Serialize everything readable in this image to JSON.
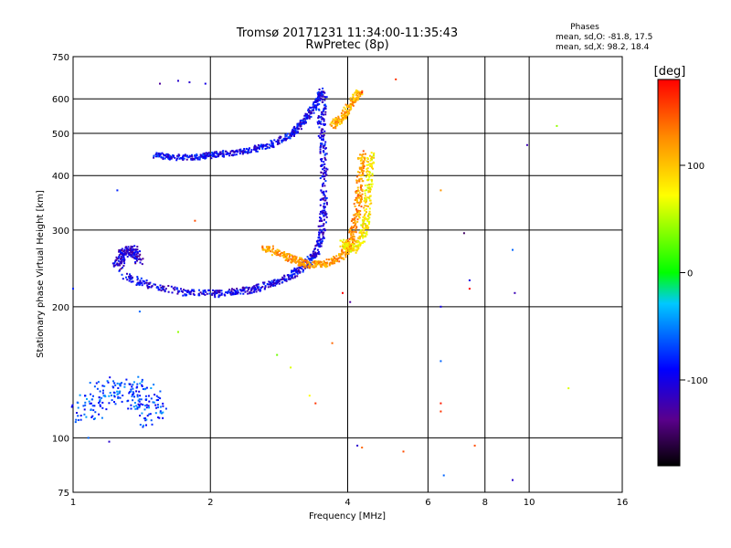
{
  "chart_data": {
    "type": "scatter",
    "title": "Tromsø 20171231 11:34:00-11:35:43",
    "subtitle": "RwPretec (8p)",
    "xlabel": "Frequency [MHz]",
    "ylabel": "Stationary phase Virtual Height [km]",
    "x_scale": "log",
    "y_scale": "log",
    "xlim": [
      1,
      16
    ],
    "ylim": [
      75,
      750
    ],
    "x_ticks": [
      "1",
      "2",
      "4",
      "6",
      "8",
      "10",
      "16"
    ],
    "x_tick_values": [
      1,
      2,
      4,
      6,
      8,
      10,
      16
    ],
    "y_ticks": [
      "75",
      "100",
      "200",
      "300",
      "400",
      "500",
      "600",
      "750"
    ],
    "y_tick_values": [
      75,
      100,
      200,
      300,
      400,
      500,
      600,
      750
    ],
    "grid": true,
    "phases_header": "Phases",
    "phases_stats": [
      "mean, sd,O: -81.8, 17.5",
      "mean, sd,X:  98.2, 18.4"
    ],
    "colorbar": {
      "label": "[deg]",
      "range": [
        -180,
        180
      ],
      "ticks": [
        "100",
        "0",
        "-100"
      ],
      "tick_values": [
        100,
        0,
        -100
      ]
    },
    "traces": [
      {
        "mode": "O",
        "phase": -95,
        "spread": 0.025,
        "points": [
          [
            1.5,
            445
          ],
          [
            1.7,
            440
          ],
          [
            1.9,
            442
          ],
          [
            2.1,
            448
          ],
          [
            2.4,
            455
          ],
          [
            2.7,
            470
          ],
          [
            3.0,
            495
          ],
          [
            3.2,
            530
          ],
          [
            3.4,
            580
          ],
          [
            3.5,
            630
          ]
        ]
      },
      {
        "mode": "O",
        "phase": -100,
        "spread": 0.03,
        "points": [
          [
            1.3,
            235
          ],
          [
            1.5,
            222
          ],
          [
            1.8,
            215
          ],
          [
            2.1,
            214
          ],
          [
            2.4,
            218
          ],
          [
            2.7,
            225
          ],
          [
            3.0,
            235
          ],
          [
            3.2,
            248
          ],
          [
            3.4,
            262
          ],
          [
            3.5,
            290
          ],
          [
            3.55,
            340
          ],
          [
            3.55,
            420
          ],
          [
            3.5,
            520
          ],
          [
            3.55,
            620
          ]
        ]
      },
      {
        "mode": "O",
        "phase": -110,
        "spread": 0.04,
        "points": [
          [
            1.25,
            245
          ],
          [
            1.28,
            265
          ],
          [
            1.35,
            270
          ],
          [
            1.4,
            255
          ]
        ]
      },
      {
        "mode": "O",
        "phase": -70,
        "spread": 0.12,
        "points": [
          [
            1.05,
            115
          ],
          [
            1.15,
            125
          ],
          [
            1.3,
            130
          ],
          [
            1.45,
            122
          ],
          [
            1.5,
            110
          ]
        ]
      },
      {
        "mode": "X",
        "phase": 120,
        "spread": 0.03,
        "points": [
          [
            2.6,
            275
          ],
          [
            2.9,
            262
          ],
          [
            3.1,
            255
          ],
          [
            3.3,
            250
          ],
          [
            3.6,
            250
          ],
          [
            3.9,
            262
          ],
          [
            4.1,
            290
          ],
          [
            4.2,
            330
          ],
          [
            4.25,
            390
          ],
          [
            4.3,
            450
          ]
        ]
      },
      {
        "mode": "X",
        "phase": 80,
        "spread": 0.03,
        "points": [
          [
            3.9,
            280
          ],
          [
            4.1,
            270
          ],
          [
            4.3,
            285
          ],
          [
            4.4,
            320
          ],
          [
            4.45,
            380
          ],
          [
            4.5,
            450
          ]
        ]
      },
      {
        "mode": "X",
        "phase": 110,
        "spread": 0.03,
        "points": [
          [
            3.7,
            520
          ],
          [
            3.9,
            545
          ],
          [
            4.1,
            590
          ],
          [
            4.3,
            630
          ]
        ]
      }
    ],
    "isolated_points": [
      {
        "x": 1.55,
        "y": 650,
        "phase": -130
      },
      {
        "x": 1.7,
        "y": 660,
        "phase": -110
      },
      {
        "x": 1.8,
        "y": 655,
        "phase": -110
      },
      {
        "x": 1.95,
        "y": 650,
        "phase": -100
      },
      {
        "x": 1.25,
        "y": 370,
        "phase": -80
      },
      {
        "x": 1.4,
        "y": 195,
        "phase": -60
      },
      {
        "x": 1.7,
        "y": 175,
        "phase": 40
      },
      {
        "x": 1.85,
        "y": 315,
        "phase": 150
      },
      {
        "x": 2.8,
        "y": 155,
        "phase": 30
      },
      {
        "x": 3.0,
        "y": 145,
        "phase": 60
      },
      {
        "x": 3.3,
        "y": 125,
        "phase": 70
      },
      {
        "x": 3.4,
        "y": 120,
        "phase": 160
      },
      {
        "x": 3.9,
        "y": 215,
        "phase": 180
      },
      {
        "x": 4.05,
        "y": 205,
        "phase": -130
      },
      {
        "x": 3.7,
        "y": 165,
        "phase": 140
      },
      {
        "x": 5.1,
        "y": 665,
        "phase": 160
      },
      {
        "x": 6.4,
        "y": 370,
        "phase": 120
      },
      {
        "x": 6.4,
        "y": 120,
        "phase": 170
      },
      {
        "x": 6.4,
        "y": 115,
        "phase": 160
      },
      {
        "x": 7.2,
        "y": 295,
        "phase": -150
      },
      {
        "x": 7.4,
        "y": 230,
        "phase": -100
      },
      {
        "x": 7.4,
        "y": 220,
        "phase": 180
      },
      {
        "x": 6.4,
        "y": 200,
        "phase": -100
      },
      {
        "x": 6.4,
        "y": 150,
        "phase": -60
      },
      {
        "x": 9.2,
        "y": 270,
        "phase": -60
      },
      {
        "x": 9.3,
        "y": 215,
        "phase": -120
      },
      {
        "x": 9.9,
        "y": 470,
        "phase": -120
      },
      {
        "x": 11.5,
        "y": 520,
        "phase": 40
      },
      {
        "x": 12.2,
        "y": 130,
        "phase": 60
      },
      {
        "x": 4.2,
        "y": 96,
        "phase": -110
      },
      {
        "x": 4.3,
        "y": 95,
        "phase": 140
      },
      {
        "x": 5.3,
        "y": 93,
        "phase": 150
      },
      {
        "x": 7.6,
        "y": 96,
        "phase": 150
      },
      {
        "x": 6.5,
        "y": 82,
        "phase": -60
      },
      {
        "x": 9.2,
        "y": 80,
        "phase": -110
      },
      {
        "x": 1.08,
        "y": 100,
        "phase": -60
      },
      {
        "x": 1.2,
        "y": 98,
        "phase": -110
      },
      {
        "x": 1.0,
        "y": 220,
        "phase": -80
      },
      {
        "x": 4.3,
        "y": 620,
        "phase": 170
      }
    ]
  }
}
